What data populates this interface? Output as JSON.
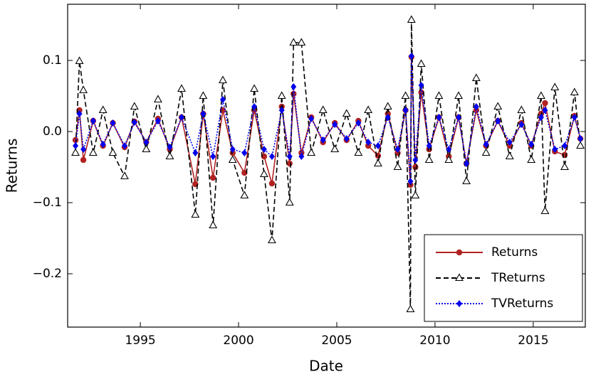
{
  "chart_data": {
    "type": "line",
    "xlabel": "Date",
    "ylabel": "Returns",
    "xlim": [
      1991.3,
      2017.65
    ],
    "ylim": [
      -0.275,
      0.179
    ],
    "xticks": [
      1995,
      2000,
      2005,
      2010,
      2015
    ],
    "yticks": [
      {
        "value": -0.2,
        "label": "−0.2"
      },
      {
        "value": -0.1,
        "label": "−0.1"
      },
      {
        "value": 0,
        "label": "0.0"
      },
      0.1
    ],
    "legend": "lower right",
    "x": [
      1991.7,
      1991.9,
      1992.1,
      1992.6,
      1993.1,
      1993.6,
      1994.2,
      1994.7,
      1995.3,
      1995.9,
      1996.5,
      1997.1,
      1997.8,
      1998.2,
      1998.7,
      1999.2,
      1999.7,
      2000.3,
      2000.8,
      2001.3,
      2001.7,
      2002.2,
      2002.6,
      2002.8,
      2003.2,
      2003.7,
      2004.3,
      2004.9,
      2005.5,
      2006.1,
      2006.6,
      2007.1,
      2007.6,
      2008.1,
      2008.5,
      2008.75,
      2008.8,
      2009.0,
      2009.3,
      2009.7,
      2010.2,
      2010.7,
      2011.2,
      2011.6,
      2012.1,
      2012.6,
      2013.2,
      2013.8,
      2014.4,
      2014.9,
      2015.4,
      2015.6,
      2016.1,
      2016.6,
      2017.1,
      2017.4
    ],
    "series": [
      {
        "name": "Returns",
        "color": "#b22222",
        "marker": "circle",
        "dash": "none",
        "values": [
          -0.012,
          0.03,
          -0.04,
          0.015,
          -0.02,
          0.012,
          -0.022,
          0.014,
          -0.015,
          0.018,
          -0.025,
          0.02,
          -0.074,
          0.025,
          -0.065,
          0.03,
          -0.03,
          -0.058,
          0.03,
          -0.035,
          -0.073,
          0.035,
          -0.045,
          0.053,
          -0.03,
          0.02,
          -0.015,
          0.012,
          -0.012,
          0.015,
          -0.02,
          -0.034,
          0.025,
          -0.03,
          0.03,
          -0.075,
          0.105,
          -0.05,
          0.055,
          -0.025,
          0.02,
          -0.035,
          0.02,
          -0.045,
          0.03,
          -0.02,
          0.015,
          -0.02,
          0.012,
          -0.02,
          0.025,
          0.04,
          -0.028,
          -0.033,
          0.022,
          -0.01
        ]
      },
      {
        "name": "TReturns",
        "color": "#000000",
        "marker": "triangle",
        "dash": "7,4",
        "values": [
          -0.03,
          0.099,
          0.058,
          -0.03,
          0.03,
          -0.03,
          -0.063,
          0.035,
          -0.025,
          0.045,
          -0.035,
          0.06,
          -0.117,
          0.05,
          -0.132,
          0.072,
          -0.04,
          -0.09,
          0.06,
          -0.06,
          -0.153,
          0.05,
          -0.1,
          0.125,
          0.125,
          -0.03,
          0.03,
          -0.025,
          0.025,
          -0.03,
          0.03,
          -0.045,
          0.035,
          -0.05,
          0.05,
          -0.25,
          0.157,
          -0.09,
          0.095,
          -0.04,
          0.05,
          -0.04,
          0.05,
          -0.07,
          0.075,
          -0.03,
          0.035,
          -0.035,
          0.03,
          -0.04,
          0.05,
          -0.112,
          0.062,
          -0.05,
          0.055,
          -0.02
        ]
      },
      {
        "name": "TVReturns",
        "color": "#0000ee",
        "marker": "diamond",
        "dash": "2,2",
        "values": [
          -0.02,
          0.025,
          -0.025,
          0.015,
          -0.018,
          0.012,
          -0.02,
          0.013,
          -0.015,
          0.015,
          -0.022,
          0.02,
          -0.03,
          0.025,
          -0.035,
          0.045,
          -0.025,
          -0.03,
          0.035,
          -0.025,
          -0.035,
          0.03,
          -0.035,
          0.063,
          -0.035,
          0.018,
          -0.012,
          0.01,
          -0.01,
          0.012,
          -0.015,
          -0.02,
          0.02,
          -0.025,
          0.03,
          -0.07,
          0.106,
          -0.04,
          0.065,
          -0.02,
          0.02,
          -0.025,
          0.02,
          -0.045,
          0.035,
          -0.018,
          0.015,
          -0.015,
          0.01,
          -0.018,
          0.02,
          0.03,
          -0.025,
          -0.02,
          0.02,
          -0.01
        ]
      }
    ]
  }
}
